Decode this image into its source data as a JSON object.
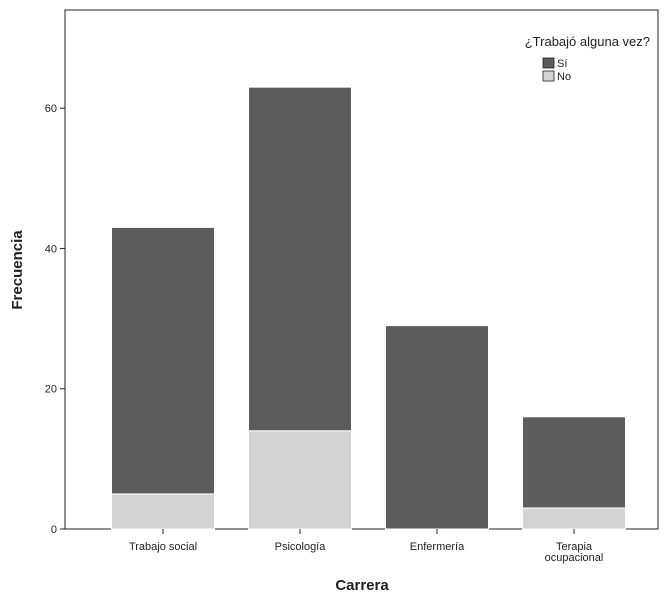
{
  "chart_data": {
    "type": "bar",
    "stacked": true,
    "categories": [
      [
        "Trabajo social"
      ],
      [
        "Psicología"
      ],
      [
        "Enfermería"
      ],
      [
        "Terapia",
        "ocupacional"
      ]
    ],
    "series": [
      {
        "name": "No",
        "values": [
          5,
          14,
          0,
          3
        ],
        "color": "#d3d3d3"
      },
      {
        "name": "Sí",
        "values": [
          38,
          49,
          29,
          13
        ],
        "color": "#5c5c5c"
      }
    ],
    "xlabel": "Carrera",
    "ylabel": "Frecuencia",
    "ylim": [
      0,
      74
    ],
    "yticks": [
      0,
      20,
      40,
      60
    ],
    "legend": {
      "title": "¿Trabajó alguna vez?",
      "entries": [
        "Sí",
        "No"
      ],
      "placement": "top-right"
    },
    "grid": false
  }
}
